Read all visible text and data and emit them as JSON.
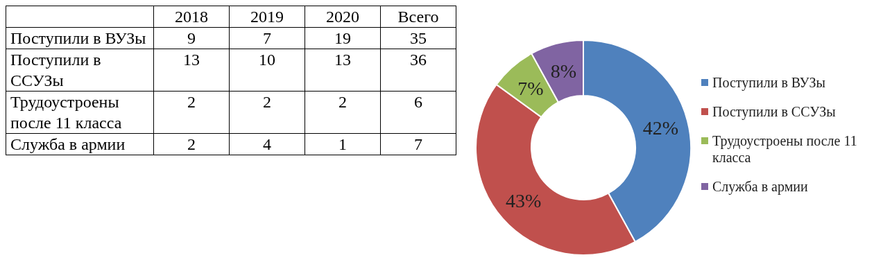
{
  "chart_data": [
    {
      "type": "heatmap",
      "categories": [
        "2018",
        "2019",
        "2020",
        "Всего"
      ],
      "y_categories": [
        "Поступили в ВУЗы",
        "Поступили в ССУЗы",
        "Трудоустроены после 11 класса",
        "Служба в армии"
      ],
      "cells": [
        [
          9,
          7,
          19,
          35
        ],
        [
          13,
          10,
          13,
          36
        ],
        [
          2,
          2,
          2,
          6
        ],
        [
          2,
          4,
          1,
          7
        ]
      ],
      "data_labels": true
    },
    {
      "type": "donut",
      "categories": [
        "Поступили в ВУЗы",
        "Поступили в ССУЗы",
        "Трудоустроены после 11 класса",
        "Служба в армии"
      ],
      "values": [
        42,
        43,
        7,
        8
      ],
      "colors": [
        "#4f81bd",
        "#c0504d",
        "#9bbb59",
        "#8064a2"
      ],
      "value_labels": [
        "42%",
        "43%",
        "7%",
        "8%"
      ],
      "legend": "right"
    }
  ]
}
